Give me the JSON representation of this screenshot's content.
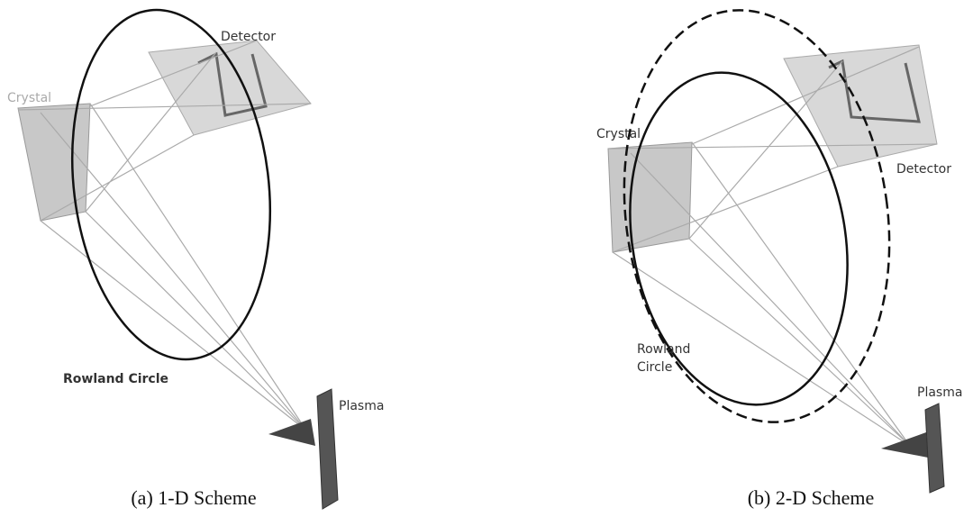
{
  "panels": [
    {
      "caption": "(a) 1-D Scheme",
      "labels": {
        "detector": "Detector",
        "crystal": "Crystal",
        "rowland": "Rowland Circle",
        "plasma": "Plasma"
      }
    },
    {
      "caption": "(b) 2-D Scheme",
      "labels": {
        "crystal": "Crystal",
        "detector": "Detector",
        "rowland": [
          "Rowland",
          "Circle"
        ],
        "plasma": "Plasma"
      }
    }
  ]
}
